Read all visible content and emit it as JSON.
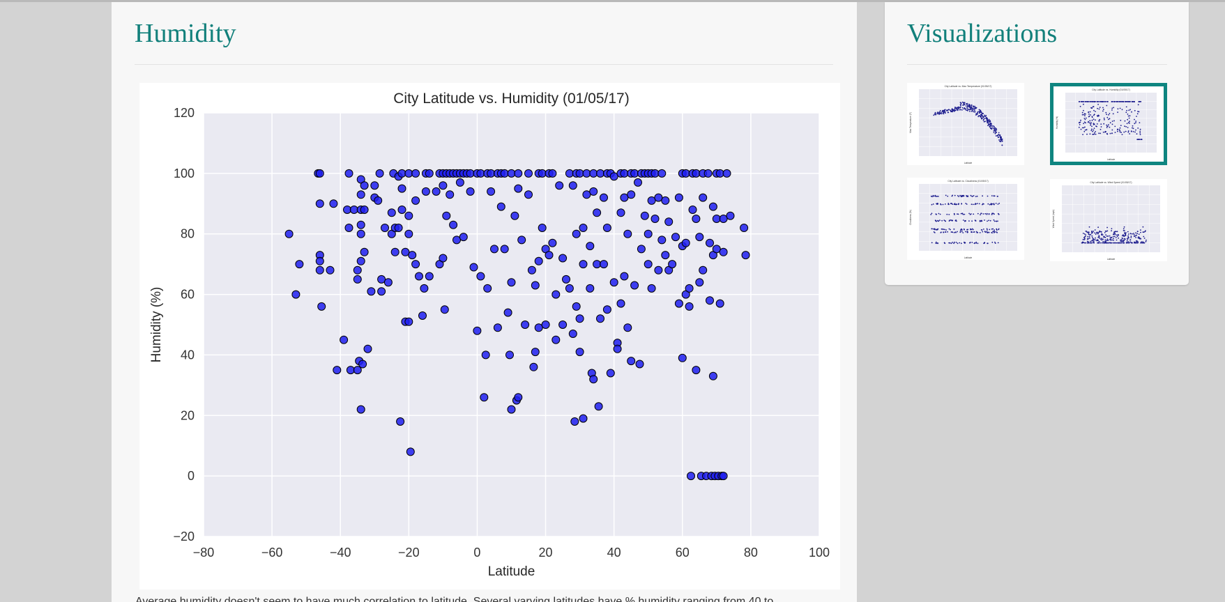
{
  "main": {
    "title": "Humidity",
    "description": "Average humidity doesn't seem to have much correlation to latitude. Several varying latitudes have % humidity ranging from 40 to"
  },
  "sidebar": {
    "title": "Visualizations",
    "thumbnails": [
      {
        "name": "temperature-thumbnail",
        "title": "City Latitude vs. Max Temperature (01/05/17)",
        "active": false
      },
      {
        "name": "humidity-thumbnail",
        "title": "City Latitude vs. Humidity (01/05/17)",
        "active": true
      },
      {
        "name": "cloudiness-thumbnail",
        "title": "City Latitude vs. Cloudiness (01/05/17)",
        "active": false
      },
      {
        "name": "wind-speed-thumbnail",
        "title": "City Latitude vs. Wind Speed (01/05/17)",
        "active": false
      }
    ]
  },
  "colors": {
    "accent": "#12807b",
    "plot_background": "#eaeaf2",
    "marker": "#1f1ff0",
    "thumbnail_marker": "#1a1a8c"
  },
  "chart_data": {
    "type": "scatter",
    "title": "City Latitude vs. Humidity (01/05/17)",
    "xlabel": "Latitude",
    "ylabel": "Humidity (%)",
    "xlim": [
      -80,
      100
    ],
    "ylim": [
      -20,
      120
    ],
    "xticks": [
      "−80",
      "−60",
      "−40",
      "−20",
      "0",
      "20",
      "40",
      "60",
      "80",
      "100"
    ],
    "yticks": [
      "−20",
      "0",
      "20",
      "40",
      "60",
      "80",
      "100",
      "120"
    ],
    "grid": true,
    "points": [
      [
        -55,
        80
      ],
      [
        -53,
        60
      ],
      [
        -52,
        70
      ],
      [
        -46.5,
        100
      ],
      [
        -46,
        100
      ],
      [
        -46,
        90
      ],
      [
        -46,
        73
      ],
      [
        -46,
        71
      ],
      [
        -46,
        68
      ],
      [
        -45.5,
        56
      ],
      [
        -43,
        68
      ],
      [
        -42,
        90
      ],
      [
        -41,
        35
      ],
      [
        -39,
        45
      ],
      [
        -38,
        88
      ],
      [
        -37.5,
        100
      ],
      [
        -37.5,
        82
      ],
      [
        -37,
        35
      ],
      [
        -36,
        88
      ],
      [
        -35,
        68
      ],
      [
        -35,
        65
      ],
      [
        -35,
        35
      ],
      [
        -34.5,
        38
      ],
      [
        -34,
        98
      ],
      [
        -34,
        93
      ],
      [
        -34,
        88
      ],
      [
        -34,
        83
      ],
      [
        -34,
        80
      ],
      [
        -34,
        71
      ],
      [
        -34,
        22
      ],
      [
        -33.5,
        37
      ],
      [
        -33,
        96
      ],
      [
        -33,
        88
      ],
      [
        -33,
        74
      ],
      [
        -32,
        42
      ],
      [
        -31,
        61
      ],
      [
        -30,
        96
      ],
      [
        -30,
        92
      ],
      [
        -29,
        91
      ],
      [
        -28.5,
        100
      ],
      [
        -28,
        65
      ],
      [
        -28,
        61
      ],
      [
        -27,
        82
      ],
      [
        -26,
        64
      ],
      [
        -25,
        87
      ],
      [
        -25,
        80
      ],
      [
        -24.5,
        100
      ],
      [
        -24,
        82
      ],
      [
        -24,
        74
      ],
      [
        -23,
        99
      ],
      [
        -23,
        82
      ],
      [
        -22.5,
        18
      ],
      [
        -22,
        100
      ],
      [
        -22,
        95
      ],
      [
        -22,
        88
      ],
      [
        -21,
        74
      ],
      [
        -21,
        51
      ],
      [
        -20,
        100
      ],
      [
        -20,
        86
      ],
      [
        -20,
        80
      ],
      [
        -20,
        51
      ],
      [
        -19.5,
        8
      ],
      [
        -19,
        73
      ],
      [
        -18,
        100
      ],
      [
        -18,
        91
      ],
      [
        -18,
        70
      ],
      [
        -17,
        66
      ],
      [
        -16,
        53
      ],
      [
        -15.5,
        62
      ],
      [
        -15,
        100
      ],
      [
        -15,
        94
      ],
      [
        -14,
        100
      ],
      [
        -14,
        66
      ],
      [
        -12,
        94
      ],
      [
        -11,
        100
      ],
      [
        -11,
        70
      ],
      [
        -10,
        100
      ],
      [
        -10,
        96
      ],
      [
        -10,
        72
      ],
      [
        -9.5,
        55
      ],
      [
        -9,
        100
      ],
      [
        -9,
        86
      ],
      [
        -8,
        100
      ],
      [
        -8,
        93
      ],
      [
        -7,
        100
      ],
      [
        -7,
        83
      ],
      [
        -6,
        100
      ],
      [
        -6,
        78
      ],
      [
        -5,
        100
      ],
      [
        -5,
        97
      ],
      [
        -4,
        100
      ],
      [
        -4,
        79
      ],
      [
        -3,
        100
      ],
      [
        -2,
        100
      ],
      [
        -2,
        94
      ],
      [
        -1,
        69
      ],
      [
        0,
        100
      ],
      [
        0,
        48
      ],
      [
        1,
        100
      ],
      [
        1,
        66
      ],
      [
        2,
        26
      ],
      [
        2.5,
        40
      ],
      [
        3,
        100
      ],
      [
        3,
        62
      ],
      [
        4,
        100
      ],
      [
        4,
        94
      ],
      [
        5,
        75
      ],
      [
        6,
        100
      ],
      [
        6,
        49
      ],
      [
        7,
        100
      ],
      [
        7,
        89
      ],
      [
        8,
        100
      ],
      [
        8,
        75
      ],
      [
        9,
        54
      ],
      [
        9.5,
        40
      ],
      [
        10,
        100
      ],
      [
        10,
        22
      ],
      [
        10,
        64
      ],
      [
        11,
        86
      ],
      [
        11.5,
        25
      ],
      [
        12,
        100
      ],
      [
        12,
        26
      ],
      [
        12,
        95
      ],
      [
        13,
        78
      ],
      [
        14,
        50
      ],
      [
        15,
        100
      ],
      [
        15,
        93
      ],
      [
        16,
        68
      ],
      [
        16.5,
        36
      ],
      [
        17,
        63
      ],
      [
        17,
        41
      ],
      [
        18,
        100
      ],
      [
        18,
        49
      ],
      [
        18,
        71
      ],
      [
        19,
        100
      ],
      [
        19,
        82
      ],
      [
        20,
        75
      ],
      [
        20,
        50
      ],
      [
        21,
        100
      ],
      [
        21,
        73
      ],
      [
        22,
        100
      ],
      [
        22,
        77
      ],
      [
        23,
        60
      ],
      [
        23,
        45
      ],
      [
        24,
        96
      ],
      [
        25,
        72
      ],
      [
        25,
        50
      ],
      [
        26,
        65
      ],
      [
        27,
        100
      ],
      [
        27,
        62
      ],
      [
        28,
        96
      ],
      [
        28,
        47
      ],
      [
        28.5,
        18
      ],
      [
        29,
        100
      ],
      [
        29,
        80
      ],
      [
        29,
        56
      ],
      [
        30,
        100
      ],
      [
        30,
        41
      ],
      [
        30,
        52
      ],
      [
        31,
        70
      ],
      [
        31,
        82
      ],
      [
        31,
        19
      ],
      [
        32,
        100
      ],
      [
        32,
        93
      ],
      [
        33,
        76
      ],
      [
        33,
        62
      ],
      [
        33.5,
        34
      ],
      [
        34,
        100
      ],
      [
        34,
        94
      ],
      [
        34,
        32
      ],
      [
        35,
        87
      ],
      [
        35,
        70
      ],
      [
        35.5,
        23
      ],
      [
        36,
        100
      ],
      [
        36,
        52
      ],
      [
        37,
        92
      ],
      [
        37,
        70
      ],
      [
        38,
        100
      ],
      [
        38,
        82
      ],
      [
        38,
        55
      ],
      [
        39,
        100
      ],
      [
        39,
        34
      ],
      [
        40,
        99
      ],
      [
        40,
        64
      ],
      [
        41,
        44
      ],
      [
        41,
        42
      ],
      [
        42,
        100
      ],
      [
        42,
        87
      ],
      [
        42,
        57
      ],
      [
        43,
        100
      ],
      [
        43,
        92
      ],
      [
        43,
        66
      ],
      [
        44,
        80
      ],
      [
        44,
        49
      ],
      [
        45,
        100
      ],
      [
        45,
        93
      ],
      [
        45,
        38
      ],
      [
        46,
        100
      ],
      [
        46,
        63
      ],
      [
        47,
        97
      ],
      [
        47.5,
        37
      ],
      [
        48,
        100
      ],
      [
        48,
        75
      ],
      [
        49,
        100
      ],
      [
        49,
        86
      ],
      [
        50,
        100
      ],
      [
        50,
        80
      ],
      [
        50,
        70
      ],
      [
        51,
        100
      ],
      [
        51,
        91
      ],
      [
        51,
        62
      ],
      [
        52,
        100
      ],
      [
        52,
        85
      ],
      [
        53,
        92
      ],
      [
        53,
        68
      ],
      [
        54,
        100
      ],
      [
        54,
        78
      ],
      [
        55,
        91
      ],
      [
        55,
        73
      ],
      [
        56,
        84
      ],
      [
        56,
        68
      ],
      [
        57,
        70
      ],
      [
        58,
        79
      ],
      [
        59,
        92
      ],
      [
        59,
        57
      ],
      [
        60,
        100
      ],
      [
        60,
        76
      ],
      [
        60,
        39
      ],
      [
        61,
        100
      ],
      [
        61,
        77
      ],
      [
        61,
        60
      ],
      [
        62,
        62
      ],
      [
        62,
        56
      ],
      [
        62.5,
        0
      ],
      [
        63,
        100
      ],
      [
        63,
        88
      ],
      [
        64,
        100
      ],
      [
        64,
        85
      ],
      [
        64,
        35
      ],
      [
        65,
        79
      ],
      [
        65,
        64
      ],
      [
        65.5,
        0
      ],
      [
        66,
        100
      ],
      [
        66,
        92
      ],
      [
        66,
        68
      ],
      [
        67,
        0
      ],
      [
        67.5,
        100
      ],
      [
        68,
        77
      ],
      [
        68,
        58
      ],
      [
        68.5,
        0
      ],
      [
        69,
        89
      ],
      [
        69,
        73
      ],
      [
        69,
        33
      ],
      [
        69.5,
        0
      ],
      [
        70,
        100
      ],
      [
        70,
        85
      ],
      [
        70,
        75
      ],
      [
        70.5,
        0
      ],
      [
        71,
        100
      ],
      [
        71,
        57
      ],
      [
        71.5,
        0
      ],
      [
        72,
        85
      ],
      [
        72,
        74
      ],
      [
        72,
        0
      ],
      [
        73,
        100
      ],
      [
        74,
        86
      ],
      [
        78,
        82
      ],
      [
        78.5,
        73
      ]
    ]
  },
  "thumb_charts": {
    "temperature": {
      "title": "City Latitude vs. Max Temperature (01/05/17)",
      "xlabel": "Latitude",
      "ylabel": "Max Temperature (F)"
    },
    "humidity": {
      "title": "City Latitude vs. Humidity (01/05/17)",
      "xlabel": "Latitude",
      "ylabel": "Humidity (%)"
    },
    "cloudiness": {
      "title": "City Latitude vs. Cloudiness (01/05/17)",
      "xlabel": "Latitude",
      "ylabel": "Cloudiness (%)"
    },
    "wind": {
      "title": "City Latitude vs. Wind Speed (01/05/17)",
      "xlabel": "Latitude",
      "ylabel": "Wind Speed (mph)"
    }
  }
}
